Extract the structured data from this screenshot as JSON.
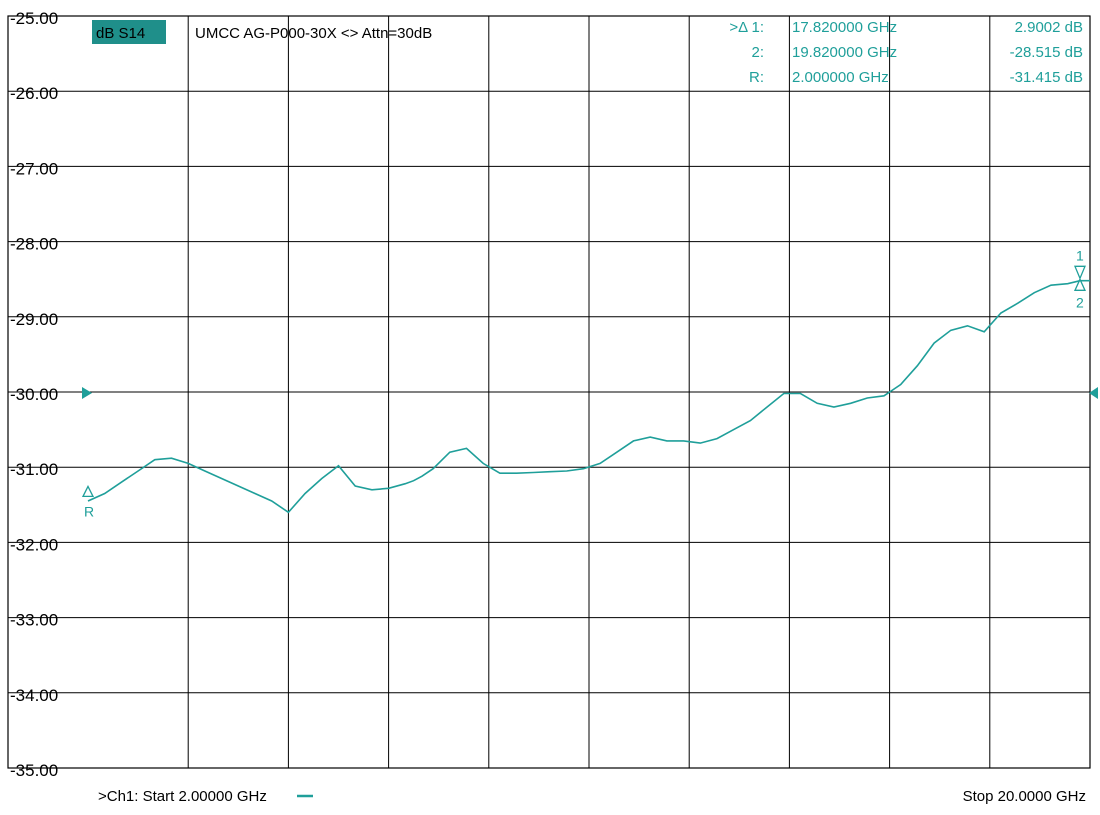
{
  "trace_label": "dB S14",
  "title": "UMCC  AG-P000-30X <> Attn=30dB",
  "colors": {
    "trace": "#1f9f9a",
    "badge_bg": "#1f8f8a",
    "grid": "#000000",
    "background": "#ffffff"
  },
  "markers_table": [
    {
      "name": ">Δ 1:",
      "freq": "17.820000 GHz",
      "value": "2.9002 dB"
    },
    {
      "name": "2:",
      "freq": "19.820000 GHz",
      "value": "-28.515 dB"
    },
    {
      "name": "R:",
      "freq": "2.000000 GHz",
      "value": "-31.415 dB"
    }
  ],
  "footer": {
    "start": ">Ch1: Start  2.00000 GHz",
    "stop": "Stop  20.0000 GHz"
  },
  "chart_data": {
    "type": "line",
    "title": "",
    "xlabel": "",
    "ylabel": "",
    "xlim": [
      2.0,
      20.0
    ],
    "ylim": [
      -35.0,
      -25.0
    ],
    "x_unit": "GHz",
    "y_unit": "dB",
    "yticks": [
      "-25.00",
      "-26.00",
      "-27.00",
      "-28.00",
      "-29.00",
      "-30.00",
      "-31.00",
      "-32.00",
      "-33.00",
      "-34.00",
      "-35.00"
    ],
    "grid": true,
    "x_divisions": 10,
    "reference_level": -30.0,
    "markers": [
      {
        "label": "R",
        "x": 2.0,
        "y": -31.415
      },
      {
        "label": "1",
        "x": 19.82,
        "y": -28.515
      },
      {
        "label": "2",
        "x": 19.82,
        "y": -28.515
      }
    ],
    "series": [
      {
        "x": [
          2.0,
          2.3,
          2.6,
          2.9,
          3.2,
          3.5,
          3.8,
          4.1,
          4.4,
          4.7,
          5.0,
          5.3,
          5.6,
          5.9,
          6.2,
          6.5,
          6.8,
          7.1,
          7.4,
          7.7,
          7.85,
          8.0,
          8.2,
          8.5,
          8.8,
          9.1,
          9.4,
          9.7,
          10.0,
          10.3,
          10.6,
          10.9,
          11.2,
          11.5,
          11.8,
          12.1,
          12.4,
          12.7,
          13.0,
          13.3,
          13.6,
          13.9,
          14.2,
          14.5,
          14.8,
          15.1,
          15.4,
          15.7,
          16.0,
          16.3,
          16.6,
          16.9,
          17.2,
          17.5,
          17.8,
          18.1,
          18.4,
          18.7,
          19.0,
          19.3,
          19.6,
          19.82,
          20.0
        ],
        "y": [
          -31.45,
          -31.35,
          -31.2,
          -31.05,
          -30.9,
          -30.88,
          -30.95,
          -31.05,
          -31.15,
          -31.25,
          -31.35,
          -31.45,
          -31.6,
          -31.35,
          -31.15,
          -30.98,
          -31.25,
          -31.3,
          -31.28,
          -31.22,
          -31.18,
          -31.12,
          -31.02,
          -30.8,
          -30.75,
          -30.95,
          -31.08,
          -31.08,
          -31.07,
          -31.06,
          -31.05,
          -31.02,
          -30.95,
          -30.8,
          -30.65,
          -30.6,
          -30.65,
          -30.65,
          -30.68,
          -30.62,
          -30.5,
          -30.38,
          -30.2,
          -30.02,
          -30.02,
          -30.15,
          -30.2,
          -30.15,
          -30.08,
          -30.05,
          -29.9,
          -29.65,
          -29.35,
          -29.18,
          -29.12,
          -29.2,
          -28.95,
          -28.82,
          -28.68,
          -28.58,
          -28.56,
          -28.52,
          -28.52
        ]
      }
    ]
  }
}
